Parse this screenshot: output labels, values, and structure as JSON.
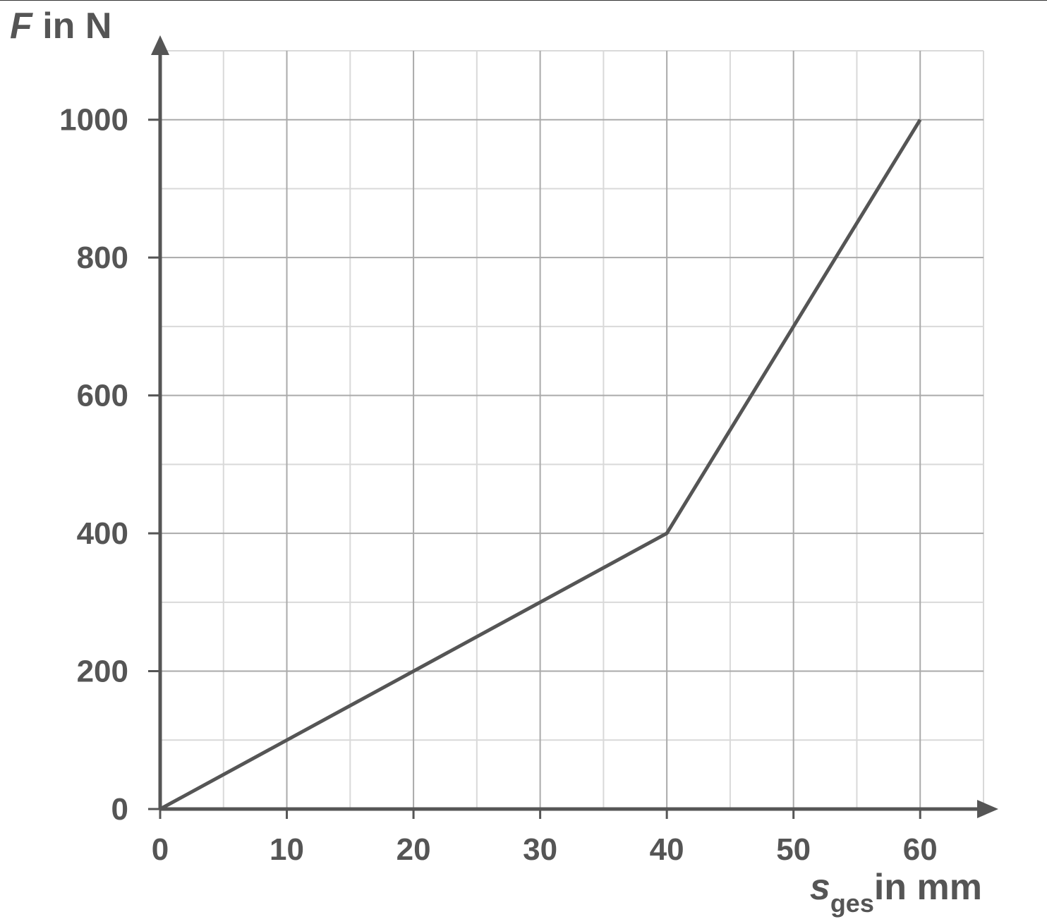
{
  "chart_data": {
    "type": "line",
    "ylabel_symbol": "F",
    "ylabel_rest": "in N",
    "xlabel_symbol": "s",
    "xlabel_subscript": "ges",
    "xlabel_rest": "in mm",
    "x": [
      0,
      40,
      60
    ],
    "series": [
      {
        "color": "#555555",
        "values": [
          0,
          400,
          1000
        ]
      }
    ],
    "xlim": [
      0,
      65
    ],
    "ylim": [
      0,
      1100
    ],
    "xticks": [
      0,
      10,
      20,
      30,
      40,
      50,
      60
    ],
    "yticks": [
      0,
      200,
      400,
      600,
      800,
      1000
    ],
    "xminorticks": [
      5,
      15,
      25,
      35,
      45,
      55,
      65
    ],
    "yminorticks": [
      100,
      300,
      500,
      700,
      900,
      1100
    ],
    "grid": true
  }
}
